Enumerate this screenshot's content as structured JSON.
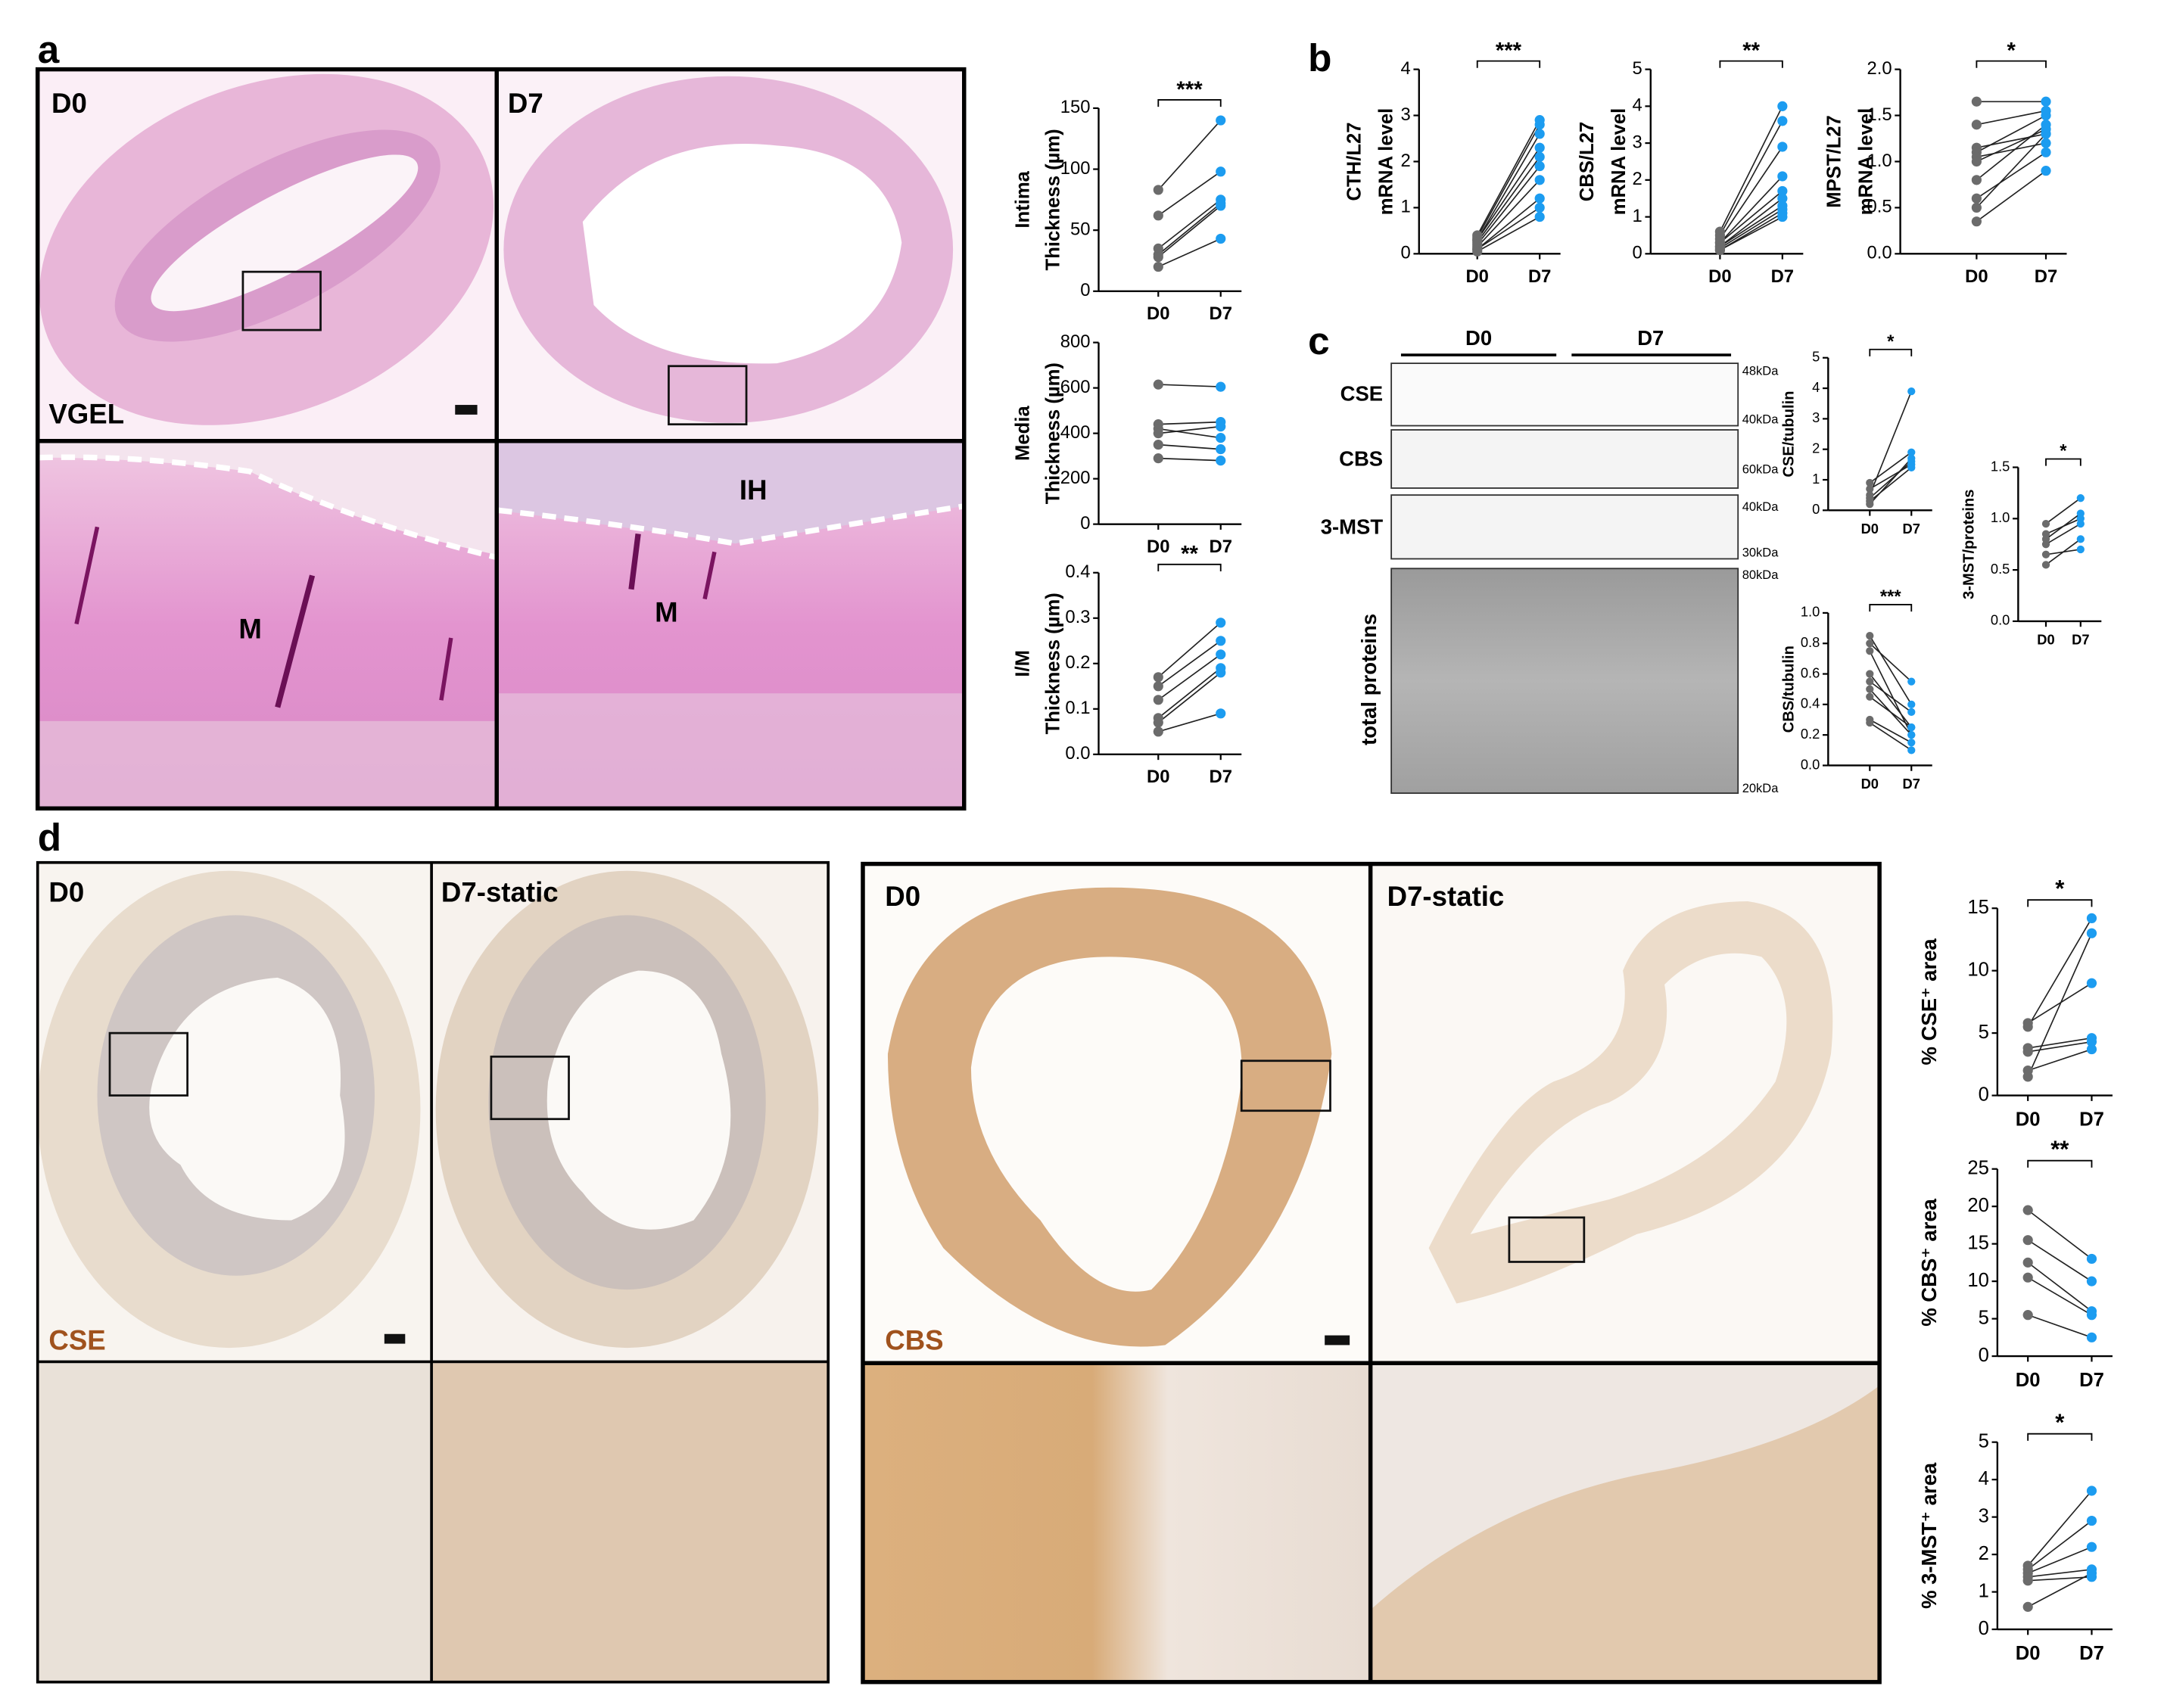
{
  "panel_letters": [
    "a",
    "b",
    "c",
    "d"
  ],
  "panel_a_labels": [
    "D0",
    "D7",
    "VGEL",
    "M",
    "IH",
    "M"
  ],
  "blot": {
    "groups": [
      "D0",
      "D7"
    ],
    "rows": [
      "CSE",
      "CBS",
      "3-MST",
      "total proteins"
    ],
    "markers": [
      "48kDa",
      "40kDa",
      "60kDa",
      "40kDa",
      "30kDa",
      "80kDa",
      "20kDa"
    ]
  },
  "panel_d_labels": [
    "D0",
    "D7-static",
    "CSE",
    "D0",
    "D7-static",
    "CBS"
  ],
  "chart_data": [
    {
      "type": "paired",
      "ylabel": [
        "Intima",
        "Thickness (µm)"
      ],
      "categories": [
        "D0",
        "D7"
      ],
      "sig": "***",
      "point_colors": [
        "#6b6b6b",
        "#1c9cf0"
      ],
      "line_color": "#222222",
      "ylim": [
        0,
        150
      ],
      "yticks": [
        0,
        50,
        100,
        150
      ],
      "series": [
        {
          "values": [
            83,
            140
          ]
        },
        {
          "values": [
            62,
            98
          ]
        },
        {
          "values": [
            35,
            75
          ]
        },
        {
          "values": [
            30,
            72
          ]
        },
        {
          "values": [
            28,
            70
          ]
        },
        {
          "values": [
            20,
            43
          ]
        }
      ]
    },
    {
      "type": "paired",
      "ylabel": [
        "Media",
        "Thickness (µm)"
      ],
      "categories": [
        "D0",
        "D7"
      ],
      "point_colors": [
        "#6b6b6b",
        "#1c9cf0"
      ],
      "line_color": "#222222",
      "ylim": [
        0,
        800
      ],
      "yticks": [
        0,
        200,
        400,
        600,
        800
      ],
      "series": [
        {
          "values": [
            615,
            605
          ]
        },
        {
          "values": [
            440,
            450
          ]
        },
        {
          "values": [
            420,
            380
          ]
        },
        {
          "values": [
            400,
            430
          ]
        },
        {
          "values": [
            350,
            330
          ]
        },
        {
          "values": [
            290,
            280
          ]
        }
      ]
    },
    {
      "type": "paired",
      "ylabel": [
        "I/M",
        "Thickness (µm)"
      ],
      "categories": [
        "D0",
        "D7"
      ],
      "sig": "**",
      "point_colors": [
        "#6b6b6b",
        "#1c9cf0"
      ],
      "line_color": "#222222",
      "ylim": [
        0,
        0.4
      ],
      "yticks": [
        {
          "value": 0,
          "label": "0.0"
        },
        0.1,
        0.2,
        0.3,
        0.4
      ],
      "series": [
        {
          "values": [
            0.17,
            0.29
          ]
        },
        {
          "values": [
            0.15,
            0.25
          ]
        },
        {
          "values": [
            0.12,
            0.22
          ]
        },
        {
          "values": [
            0.08,
            0.19
          ]
        },
        {
          "values": [
            0.07,
            0.18
          ]
        },
        {
          "values": [
            0.05,
            0.09
          ]
        }
      ]
    },
    {
      "type": "paired",
      "ylabel": [
        "CTH/L27",
        "mRNA level"
      ],
      "categories": [
        "D0",
        "D7"
      ],
      "sig": "***",
      "point_colors": [
        "#6b6b6b",
        "#1c9cf0"
      ],
      "line_color": "#222222",
      "ylim": [
        0,
        4
      ],
      "yticks": [
        0,
        1,
        2,
        3,
        4
      ],
      "series": [
        {
          "values": [
            0.4,
            2.9
          ]
        },
        {
          "values": [
            0.35,
            2.8
          ]
        },
        {
          "values": [
            0.3,
            2.6
          ]
        },
        {
          "values": [
            0.3,
            2.3
          ]
        },
        {
          "values": [
            0.25,
            2.1
          ]
        },
        {
          "values": [
            0.2,
            1.9
          ]
        },
        {
          "values": [
            0.15,
            1.6
          ]
        },
        {
          "values": [
            0.1,
            1.2
          ]
        },
        {
          "values": [
            0.1,
            1.0
          ]
        },
        {
          "values": [
            0.05,
            0.8
          ]
        }
      ]
    },
    {
      "type": "paired",
      "ylabel": [
        "CBS/L27",
        "mRNA level"
      ],
      "categories": [
        "D0",
        "D7"
      ],
      "sig": "**",
      "point_colors": [
        "#6b6b6b",
        "#1c9cf0"
      ],
      "line_color": "#222222",
      "ylim": [
        0,
        5
      ],
      "yticks": [
        0,
        1,
        2,
        3,
        4,
        5
      ],
      "series": [
        {
          "values": [
            0.6,
            4.0
          ]
        },
        {
          "values": [
            0.5,
            3.6
          ]
        },
        {
          "values": [
            0.4,
            2.9
          ]
        },
        {
          "values": [
            0.3,
            2.1
          ]
        },
        {
          "values": [
            0.3,
            1.7
          ]
        },
        {
          "values": [
            0.2,
            1.5
          ]
        },
        {
          "values": [
            0.2,
            1.3
          ]
        },
        {
          "values": [
            0.15,
            1.2
          ]
        },
        {
          "values": [
            0.1,
            1.1
          ]
        },
        {
          "values": [
            0.1,
            1.0
          ]
        }
      ]
    },
    {
      "type": "paired",
      "ylabel": [
        "MPST/L27",
        "mRNA level"
      ],
      "categories": [
        "D0",
        "D7"
      ],
      "sig": "*",
      "point_colors": [
        "#6b6b6b",
        "#1c9cf0"
      ],
      "line_color": "#222222",
      "ylim": [
        0,
        2
      ],
      "yticks": [
        {
          "value": 0,
          "label": "0.0"
        },
        0.5,
        {
          "value": 1,
          "label": "1.0"
        },
        1.5,
        {
          "value": 2,
          "label": "2.0"
        }
      ],
      "series": [
        {
          "values": [
            1.65,
            1.65
          ]
        },
        {
          "values": [
            1.4,
            1.55
          ]
        },
        {
          "values": [
            1.15,
            1.3
          ]
        },
        {
          "values": [
            1.1,
            1.5
          ]
        },
        {
          "values": [
            1.05,
            1.2
          ]
        },
        {
          "values": [
            1.0,
            1.35
          ]
        },
        {
          "values": [
            0.8,
            1.4
          ]
        },
        {
          "values": [
            0.6,
            1.1
          ]
        },
        {
          "values": [
            0.5,
            1.3
          ]
        },
        {
          "values": [
            0.35,
            0.9
          ]
        }
      ]
    },
    {
      "type": "paired",
      "ylabel": [
        "CSE/tubulin"
      ],
      "categories": [
        "D0",
        "D7"
      ],
      "sig": "*",
      "point_colors": [
        "#6b6b6b",
        "#1c9cf0"
      ],
      "line_color": "#222222",
      "ylim": [
        0,
        5
      ],
      "yticks": [
        0,
        1,
        2,
        3,
        4,
        5
      ],
      "series": [
        {
          "values": [
            0.9,
            1.9
          ]
        },
        {
          "values": [
            0.7,
            1.5
          ]
        },
        {
          "values": [
            0.5,
            3.9
          ]
        },
        {
          "values": [
            0.4,
            1.6
          ]
        },
        {
          "values": [
            0.3,
            1.4
          ]
        },
        {
          "values": [
            0.2,
            1.7
          ]
        }
      ]
    },
    {
      "type": "paired",
      "ylabel": [
        "CBS/tubulin"
      ],
      "categories": [
        "D0",
        "D7"
      ],
      "sig": "***",
      "point_colors": [
        "#6b6b6b",
        "#1c9cf0"
      ],
      "line_color": "#222222",
      "ylim": [
        0,
        1
      ],
      "yticks": [
        {
          "value": 0,
          "label": "0.0"
        },
        0.2,
        0.4,
        0.6,
        0.8,
        {
          "value": 1,
          "label": "1.0"
        }
      ],
      "series": [
        {
          "values": [
            0.85,
            0.4
          ]
        },
        {
          "values": [
            0.8,
            0.55
          ]
        },
        {
          "values": [
            0.75,
            0.2
          ]
        },
        {
          "values": [
            0.6,
            0.25
          ]
        },
        {
          "values": [
            0.55,
            0.35
          ]
        },
        {
          "values": [
            0.5,
            0.2
          ]
        },
        {
          "values": [
            0.45,
            0.25
          ]
        },
        {
          "values": [
            0.3,
            0.15
          ]
        },
        {
          "values": [
            0.28,
            0.1
          ]
        }
      ]
    },
    {
      "type": "paired",
      "ylabel": [
        "3-MST/proteins"
      ],
      "categories": [
        "D0",
        "D7"
      ],
      "sig": "*",
      "point_colors": [
        "#6b6b6b",
        "#1c9cf0"
      ],
      "line_color": "#222222",
      "ylim": [
        0,
        1.5
      ],
      "yticks": [
        {
          "value": 0,
          "label": "0.0"
        },
        0.5,
        {
          "value": 1,
          "label": "1.0"
        },
        1.5
      ],
      "series": [
        {
          "values": [
            0.95,
            1.2
          ]
        },
        {
          "values": [
            0.85,
            1.0
          ]
        },
        {
          "values": [
            0.8,
            1.05
          ]
        },
        {
          "values": [
            0.75,
            0.95
          ]
        },
        {
          "values": [
            0.65,
            0.7
          ]
        },
        {
          "values": [
            0.55,
            0.8
          ]
        }
      ]
    },
    {
      "type": "paired",
      "ylabel": [
        "% CSE⁺ area"
      ],
      "categories": [
        "D0",
        "D7"
      ],
      "sig": "*",
      "point_colors": [
        "#6b6b6b",
        "#1c9cf0"
      ],
      "line_color": "#222222",
      "ylim": [
        0,
        15
      ],
      "yticks": [
        0,
        5,
        10,
        15
      ],
      "series": [
        {
          "values": [
            5.8,
            9
          ]
        },
        {
          "values": [
            5.5,
            14.2
          ]
        },
        {
          "values": [
            3.8,
            4.6
          ]
        },
        {
          "values": [
            3.5,
            4.3
          ]
        },
        {
          "values": [
            2,
            3.7
          ]
        },
        {
          "values": [
            1.5,
            13
          ]
        }
      ]
    },
    {
      "type": "paired",
      "ylabel": [
        "% CBS⁺ area"
      ],
      "categories": [
        "D0",
        "D7"
      ],
      "sig": "**",
      "point_colors": [
        "#6b6b6b",
        "#1c9cf0"
      ],
      "line_color": "#222222",
      "ylim": [
        0,
        25
      ],
      "yticks": [
        0,
        5,
        10,
        15,
        20,
        25
      ],
      "series": [
        {
          "values": [
            19.5,
            13
          ]
        },
        {
          "values": [
            15.5,
            10
          ]
        },
        {
          "values": [
            12.5,
            6
          ]
        },
        {
          "values": [
            10.5,
            5.5
          ]
        },
        {
          "values": [
            5.5,
            2.5
          ]
        }
      ]
    },
    {
      "type": "paired",
      "ylabel": [
        "% 3-MST⁺ area"
      ],
      "categories": [
        "D0",
        "D7"
      ],
      "sig": "*",
      "point_colors": [
        "#6b6b6b",
        "#1c9cf0"
      ],
      "line_color": "#222222",
      "ylim": [
        0,
        5
      ],
      "yticks": [
        0,
        1,
        2,
        3,
        4,
        5
      ],
      "series": [
        {
          "values": [
            1.7,
            3.7
          ]
        },
        {
          "values": [
            1.6,
            2.9
          ]
        },
        {
          "values": [
            1.5,
            2.2
          ]
        },
        {
          "values": [
            1.4,
            1.6
          ]
        },
        {
          "values": [
            1.3,
            1.4
          ]
        },
        {
          "values": [
            0.6,
            1.5
          ]
        }
      ]
    }
  ]
}
